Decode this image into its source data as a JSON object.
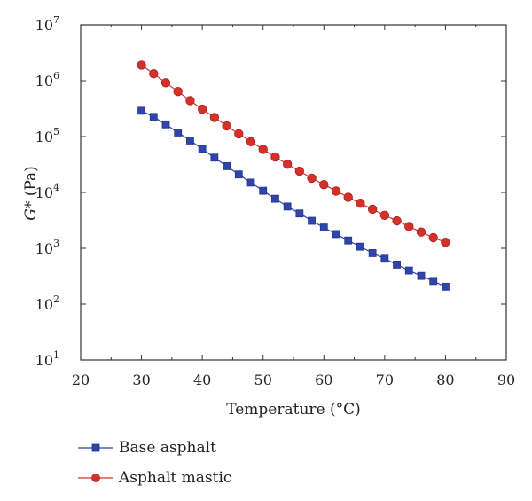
{
  "chart_data": {
    "type": "line",
    "x": [
      30,
      32,
      34,
      36,
      38,
      40,
      42,
      44,
      46,
      48,
      50,
      52,
      54,
      56,
      58,
      60,
      62,
      64,
      66,
      68,
      70,
      72,
      74,
      76,
      78,
      80
    ],
    "series": [
      {
        "name": "Base asphalt",
        "marker": "square",
        "color": "#2f45a8",
        "values": [
          290000.0,
          225000.0,
          165000.0,
          118000.0,
          85000.0,
          60000.0,
          42000.0,
          29500.0,
          21000.0,
          15000.0,
          10700.0,
          7700.0,
          5600.0,
          4200.0,
          3100.0,
          2350.0,
          1800.0,
          1380.0,
          1070.0,
          820.0,
          650.0,
          510.0,
          400.0,
          320.0,
          260.0,
          205.0
        ]
      },
      {
        "name": "Asphalt mastic",
        "marker": "circle",
        "color": "#d6302b",
        "values": [
          1900000.0,
          1330000.0,
          920000.0,
          640000.0,
          440000.0,
          310000.0,
          220000.0,
          155000.0,
          112000.0,
          81000.0,
          59000.0,
          43000.0,
          32000.0,
          24000.0,
          18000.0,
          13800.0,
          10600.0,
          8200.0,
          6400.0,
          5000.0,
          3900.0,
          3100.0,
          2450.0,
          1950.0,
          1550.0,
          1280.0
        ]
      }
    ],
    "xlabel": "Temperature (°C)",
    "ylabel_base": "G",
    "ylabel_rest": "* (Pa)",
    "xlim": [
      20,
      90
    ],
    "ylim": [
      10,
      10000000
    ],
    "yscale": "log",
    "xticks": [
      "20",
      "30",
      "40",
      "50",
      "60",
      "70",
      "80",
      "90"
    ],
    "yticks": [
      {
        "base": "10",
        "exp": "1"
      },
      {
        "base": "10",
        "exp": "2"
      },
      {
        "base": "10",
        "exp": "3"
      },
      {
        "base": "10",
        "exp": "4"
      },
      {
        "base": "10",
        "exp": "5"
      },
      {
        "base": "10",
        "exp": "6"
      },
      {
        "base": "10",
        "exp": "7"
      }
    ],
    "grid": false,
    "legend_position": "bottom-left"
  }
}
